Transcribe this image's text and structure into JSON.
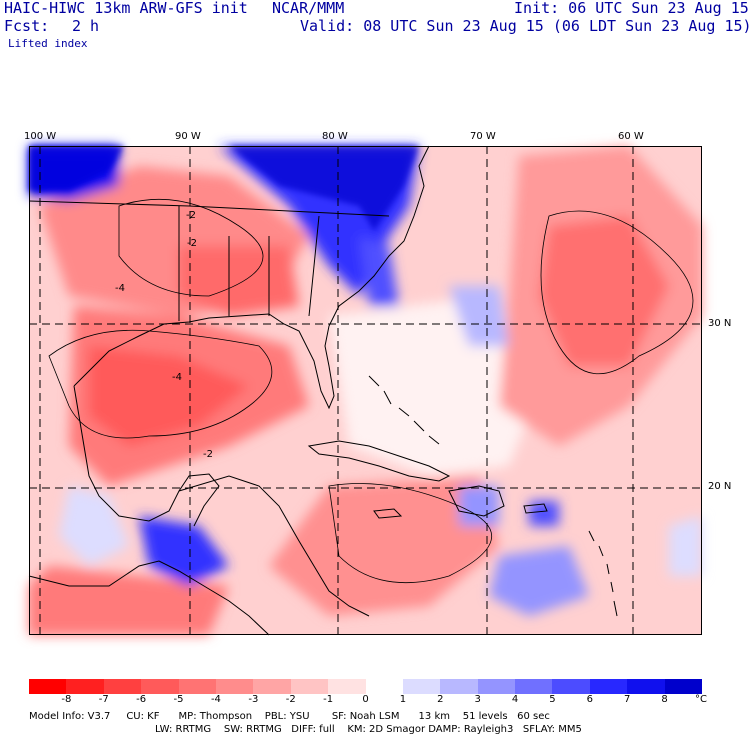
{
  "header": {
    "title": "HAIC-HIWC 13km ARW-GFS init",
    "org": "NCAR/MMM",
    "init": "Init: 06 UTC Sun 23 Aug 15",
    "fcst_label": "Fcst:",
    "fcst_value": "2 h",
    "valid": "Valid: 08 UTC Sun 23 Aug 15 (06 LDT Sun 23 Aug 15)",
    "field": "Lifted index"
  },
  "axes": {
    "lon_labels": [
      "100 W",
      "90 W",
      "80 W",
      "70 W",
      "60 W"
    ],
    "lat_labels": [
      "30 N",
      "20 N"
    ]
  },
  "contour_labels": [
    "-2",
    "-2",
    "-4",
    "-4",
    "-2"
  ],
  "colorbar": {
    "ticks": [
      "-8",
      "-7",
      "-6",
      "-5",
      "-4",
      "-3",
      "-2",
      "-1",
      "0",
      "1",
      "2",
      "3",
      "4",
      "5",
      "6",
      "7",
      "8"
    ],
    "unit": "°C",
    "colors": [
      "#ff0000",
      "#ff2020",
      "#ff4040",
      "#ff5a5a",
      "#ff7373",
      "#ff8c8c",
      "#ffa5a5",
      "#ffc4c4",
      "#ffe2e2",
      "#ffffff",
      "#dcdcff",
      "#b8b8ff",
      "#9494ff",
      "#7070ff",
      "#4c4cff",
      "#2828ff",
      "#1010ee",
      "#0000cc"
    ]
  },
  "footer": {
    "line1": "Model Info: V3.7     CU: KF      MP: Thompson    PBL: YSU       SF: Noah LSM      13 km    51 levels   60 sec",
    "line2": "LW: RRTMG    SW: RRTMG   DIFF: full    KM: 2D Smagor DAMP: Rayleigh3   SFLAY: MM5"
  },
  "colors": {
    "text": "#0000a0",
    "warm_light": "#ffc4c4",
    "warm_mid": "#ff8c8c",
    "warm_strong": "#ff5a5a",
    "cool_light": "#dcdcff",
    "cool_mid": "#9494ff",
    "cool_strong": "#1010ee"
  }
}
